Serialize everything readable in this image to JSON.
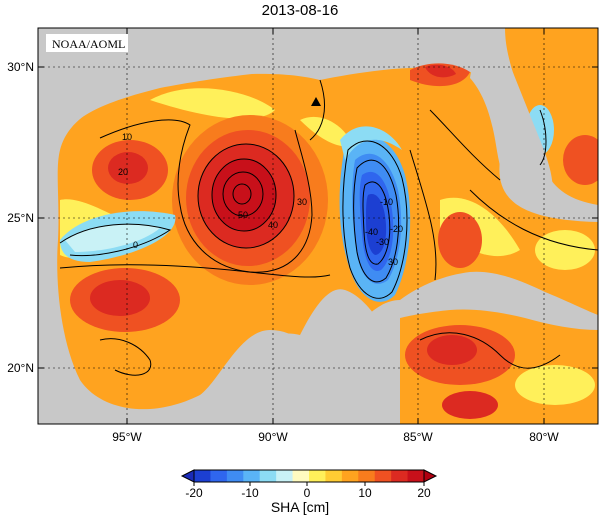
{
  "title": "2013-08-16",
  "credit": "NOAA/AOML",
  "lat_labels": [
    "30°N",
    "25°N",
    "20°N"
  ],
  "lon_labels": [
    "95°W",
    "90°W",
    "85°W",
    "80°W"
  ],
  "contour_labels": [
    "10",
    "20",
    "30",
    "40",
    "50",
    "0",
    "-10",
    "-20",
    "-30",
    "-40",
    "30"
  ],
  "colorbar": {
    "label": "SHA [cm]",
    "ticks": [
      "-20",
      "-10",
      "0",
      "10",
      "20"
    ],
    "colors": [
      "#1c3fd2",
      "#2f66ee",
      "#3f8cf3",
      "#5ab4f6",
      "#8cdcf4",
      "#c9f2f6",
      "#fffbc0",
      "#fff05a",
      "#ffcc33",
      "#ffa31f",
      "#f87c1d",
      "#ef5122",
      "#dc2a21",
      "#c8101a"
    ]
  },
  "marker": "triangle"
}
